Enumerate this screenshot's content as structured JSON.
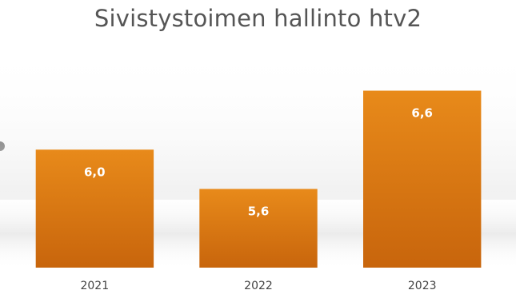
{
  "chart_data": {
    "type": "bar",
    "title": "Sivistystoimen hallinto htv2",
    "categories": [
      "2021",
      "2022",
      "2023"
    ],
    "values": [
      6.0,
      5.6,
      6.6
    ],
    "value_labels": [
      "6,0",
      "5,6",
      "6,6"
    ],
    "xlabel": "",
    "ylabel": "",
    "ylim": [
      4.8,
      6.75
    ],
    "grid": false,
    "legend": "none",
    "colors": {
      "bar_top": "#e88a1a",
      "bar_bottom": "#c8650c",
      "title": "#555555",
      "tick": "#444444",
      "label": "#ffffff"
    }
  }
}
